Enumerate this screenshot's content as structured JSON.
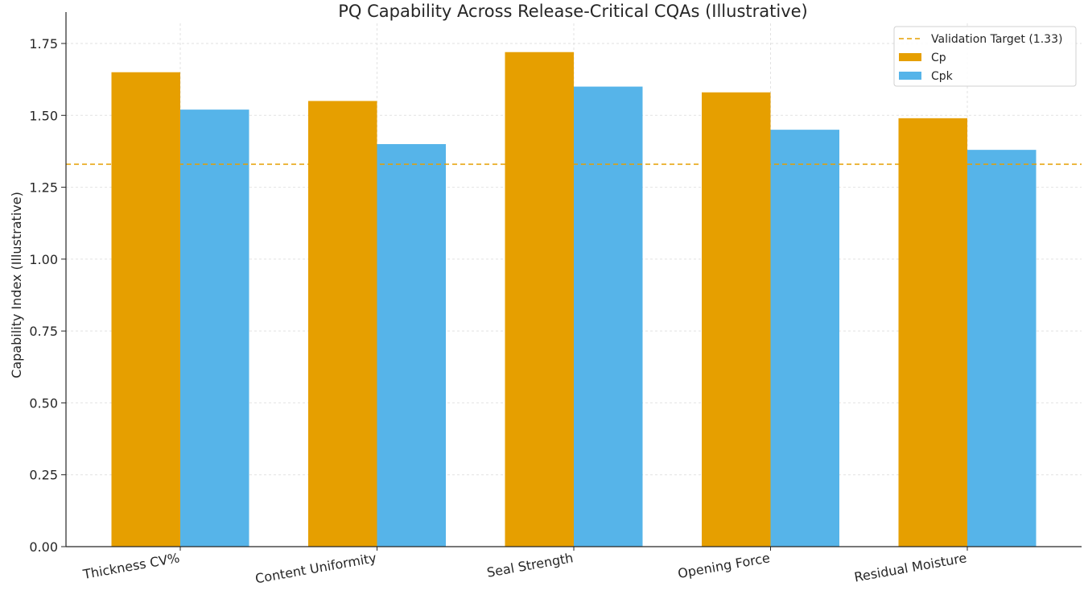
{
  "chart_data": {
    "type": "bar",
    "title": "PQ Capability Across Release-Critical CQAs (Illustrative)",
    "xlabel": "",
    "ylabel": "Capability Index (Illustrative)",
    "categories": [
      "Thickness CV%",
      "Content Uniformity",
      "Seal Strength",
      "Opening Force",
      "Residual Moisture"
    ],
    "series": [
      {
        "name": "Cp",
        "color": "#E69F00",
        "values": [
          1.65,
          1.55,
          1.72,
          1.58,
          1.49
        ]
      },
      {
        "name": "Cpk",
        "color": "#56B4E9",
        "values": [
          1.52,
          1.4,
          1.6,
          1.45,
          1.38
        ]
      }
    ],
    "reference_line": {
      "name": "Validation Target (1.33)",
      "value": 1.33,
      "color": "#E69F00",
      "style": "dashed"
    },
    "ylim": [
      0,
      1.82
    ],
    "yticks": [
      "0.00",
      "0.25",
      "0.50",
      "0.75",
      "1.00",
      "1.25",
      "1.50",
      "1.75"
    ],
    "grid": true,
    "legend_position": "top-right"
  }
}
